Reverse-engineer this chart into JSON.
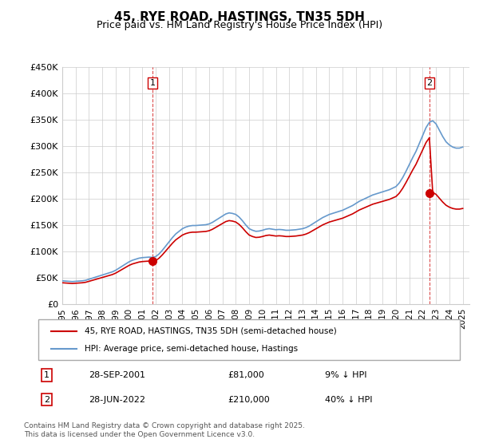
{
  "title": "45, RYE ROAD, HASTINGS, TN35 5DH",
  "subtitle": "Price paid vs. HM Land Registry's House Price Index (HPI)",
  "ylabel_ticks": [
    "£0",
    "£50K",
    "£100K",
    "£150K",
    "£200K",
    "£250K",
    "£300K",
    "£350K",
    "£400K",
    "£450K"
  ],
  "ytick_values": [
    0,
    50000,
    100000,
    150000,
    200000,
    250000,
    300000,
    350000,
    400000,
    450000
  ],
  "ylim": [
    0,
    450000
  ],
  "xlim_start": 1995.0,
  "xlim_end": 2025.5,
  "legend_line1": "45, RYE ROAD, HASTINGS, TN35 5DH (semi-detached house)",
  "legend_line2": "HPI: Average price, semi-detached house, Hastings",
  "annotation1_label": "1",
  "annotation1_date": "28-SEP-2001",
  "annotation1_price": "£81,000",
  "annotation1_hpi": "9% ↓ HPI",
  "annotation1_year": 2001.75,
  "annotation1_value": 81000,
  "annotation2_label": "2",
  "annotation2_date": "28-JUN-2022",
  "annotation2_price": "£210,000",
  "annotation2_hpi": "40% ↓ HPI",
  "annotation2_year": 2022.5,
  "annotation2_value": 210000,
  "red_color": "#cc0000",
  "blue_color": "#6699cc",
  "copyright": "Contains HM Land Registry data © Crown copyright and database right 2025.\nThis data is licensed under the Open Government Licence v3.0.",
  "hpi_years": [
    1995.0,
    1995.25,
    1995.5,
    1995.75,
    1996.0,
    1996.25,
    1996.5,
    1996.75,
    1997.0,
    1997.25,
    1997.5,
    1997.75,
    1998.0,
    1998.25,
    1998.5,
    1998.75,
    1999.0,
    1999.25,
    1999.5,
    1999.75,
    2000.0,
    2000.25,
    2000.5,
    2000.75,
    2001.0,
    2001.25,
    2001.5,
    2001.75,
    2002.0,
    2002.25,
    2002.5,
    2002.75,
    2003.0,
    2003.25,
    2003.5,
    2003.75,
    2004.0,
    2004.25,
    2004.5,
    2004.75,
    2005.0,
    2005.25,
    2005.5,
    2005.75,
    2006.0,
    2006.25,
    2006.5,
    2006.75,
    2007.0,
    2007.25,
    2007.5,
    2007.75,
    2008.0,
    2008.25,
    2008.5,
    2008.75,
    2009.0,
    2009.25,
    2009.5,
    2009.75,
    2010.0,
    2010.25,
    2010.5,
    2010.75,
    2011.0,
    2011.25,
    2011.5,
    2011.75,
    2012.0,
    2012.25,
    2012.5,
    2012.75,
    2013.0,
    2013.25,
    2013.5,
    2013.75,
    2014.0,
    2014.25,
    2014.5,
    2014.75,
    2015.0,
    2015.25,
    2015.5,
    2015.75,
    2016.0,
    2016.25,
    2016.5,
    2016.75,
    2017.0,
    2017.25,
    2017.5,
    2017.75,
    2018.0,
    2018.25,
    2018.5,
    2018.75,
    2019.0,
    2019.25,
    2019.5,
    2019.75,
    2020.0,
    2020.25,
    2020.5,
    2020.75,
    2021.0,
    2021.25,
    2021.5,
    2021.75,
    2022.0,
    2022.25,
    2022.5,
    2022.75,
    2023.0,
    2023.25,
    2023.5,
    2023.75,
    2024.0,
    2024.25,
    2024.5,
    2024.75,
    2025.0
  ],
  "hpi_values": [
    44000,
    43500,
    43000,
    42500,
    43000,
    43500,
    44000,
    45000,
    47000,
    49000,
    51000,
    53000,
    55000,
    57000,
    59000,
    61000,
    64000,
    68000,
    72000,
    76000,
    80000,
    83000,
    85000,
    87000,
    88000,
    88500,
    89000,
    88500,
    90000,
    95000,
    102000,
    110000,
    118000,
    126000,
    133000,
    138000,
    143000,
    146000,
    148000,
    149000,
    149000,
    149500,
    150000,
    150500,
    152000,
    155000,
    159000,
    163000,
    167000,
    171000,
    173000,
    172000,
    170000,
    165000,
    158000,
    150000,
    143000,
    140000,
    138000,
    138500,
    140000,
    142000,
    143000,
    142000,
    141000,
    141500,
    141000,
    140000,
    140000,
    140500,
    141000,
    142000,
    143000,
    145000,
    148000,
    152000,
    156000,
    160000,
    164000,
    167000,
    170000,
    172000,
    174000,
    176000,
    178000,
    181000,
    184000,
    187000,
    191000,
    195000,
    198000,
    201000,
    204000,
    207000,
    209000,
    211000,
    213000,
    215000,
    217000,
    220000,
    223000,
    230000,
    240000,
    252000,
    265000,
    278000,
    290000,
    305000,
    320000,
    335000,
    345000,
    348000,
    342000,
    330000,
    318000,
    308000,
    302000,
    298000,
    296000,
    296000,
    298000
  ],
  "price_paid_years": [
    2001.75,
    2022.5
  ],
  "price_paid_values": [
    81000,
    210000
  ],
  "x_tick_years": [
    1995,
    1996,
    1997,
    1998,
    1999,
    2000,
    2001,
    2002,
    2003,
    2004,
    2005,
    2006,
    2007,
    2008,
    2009,
    2010,
    2011,
    2012,
    2013,
    2014,
    2015,
    2016,
    2017,
    2018,
    2019,
    2020,
    2021,
    2022,
    2023,
    2024,
    2025
  ]
}
